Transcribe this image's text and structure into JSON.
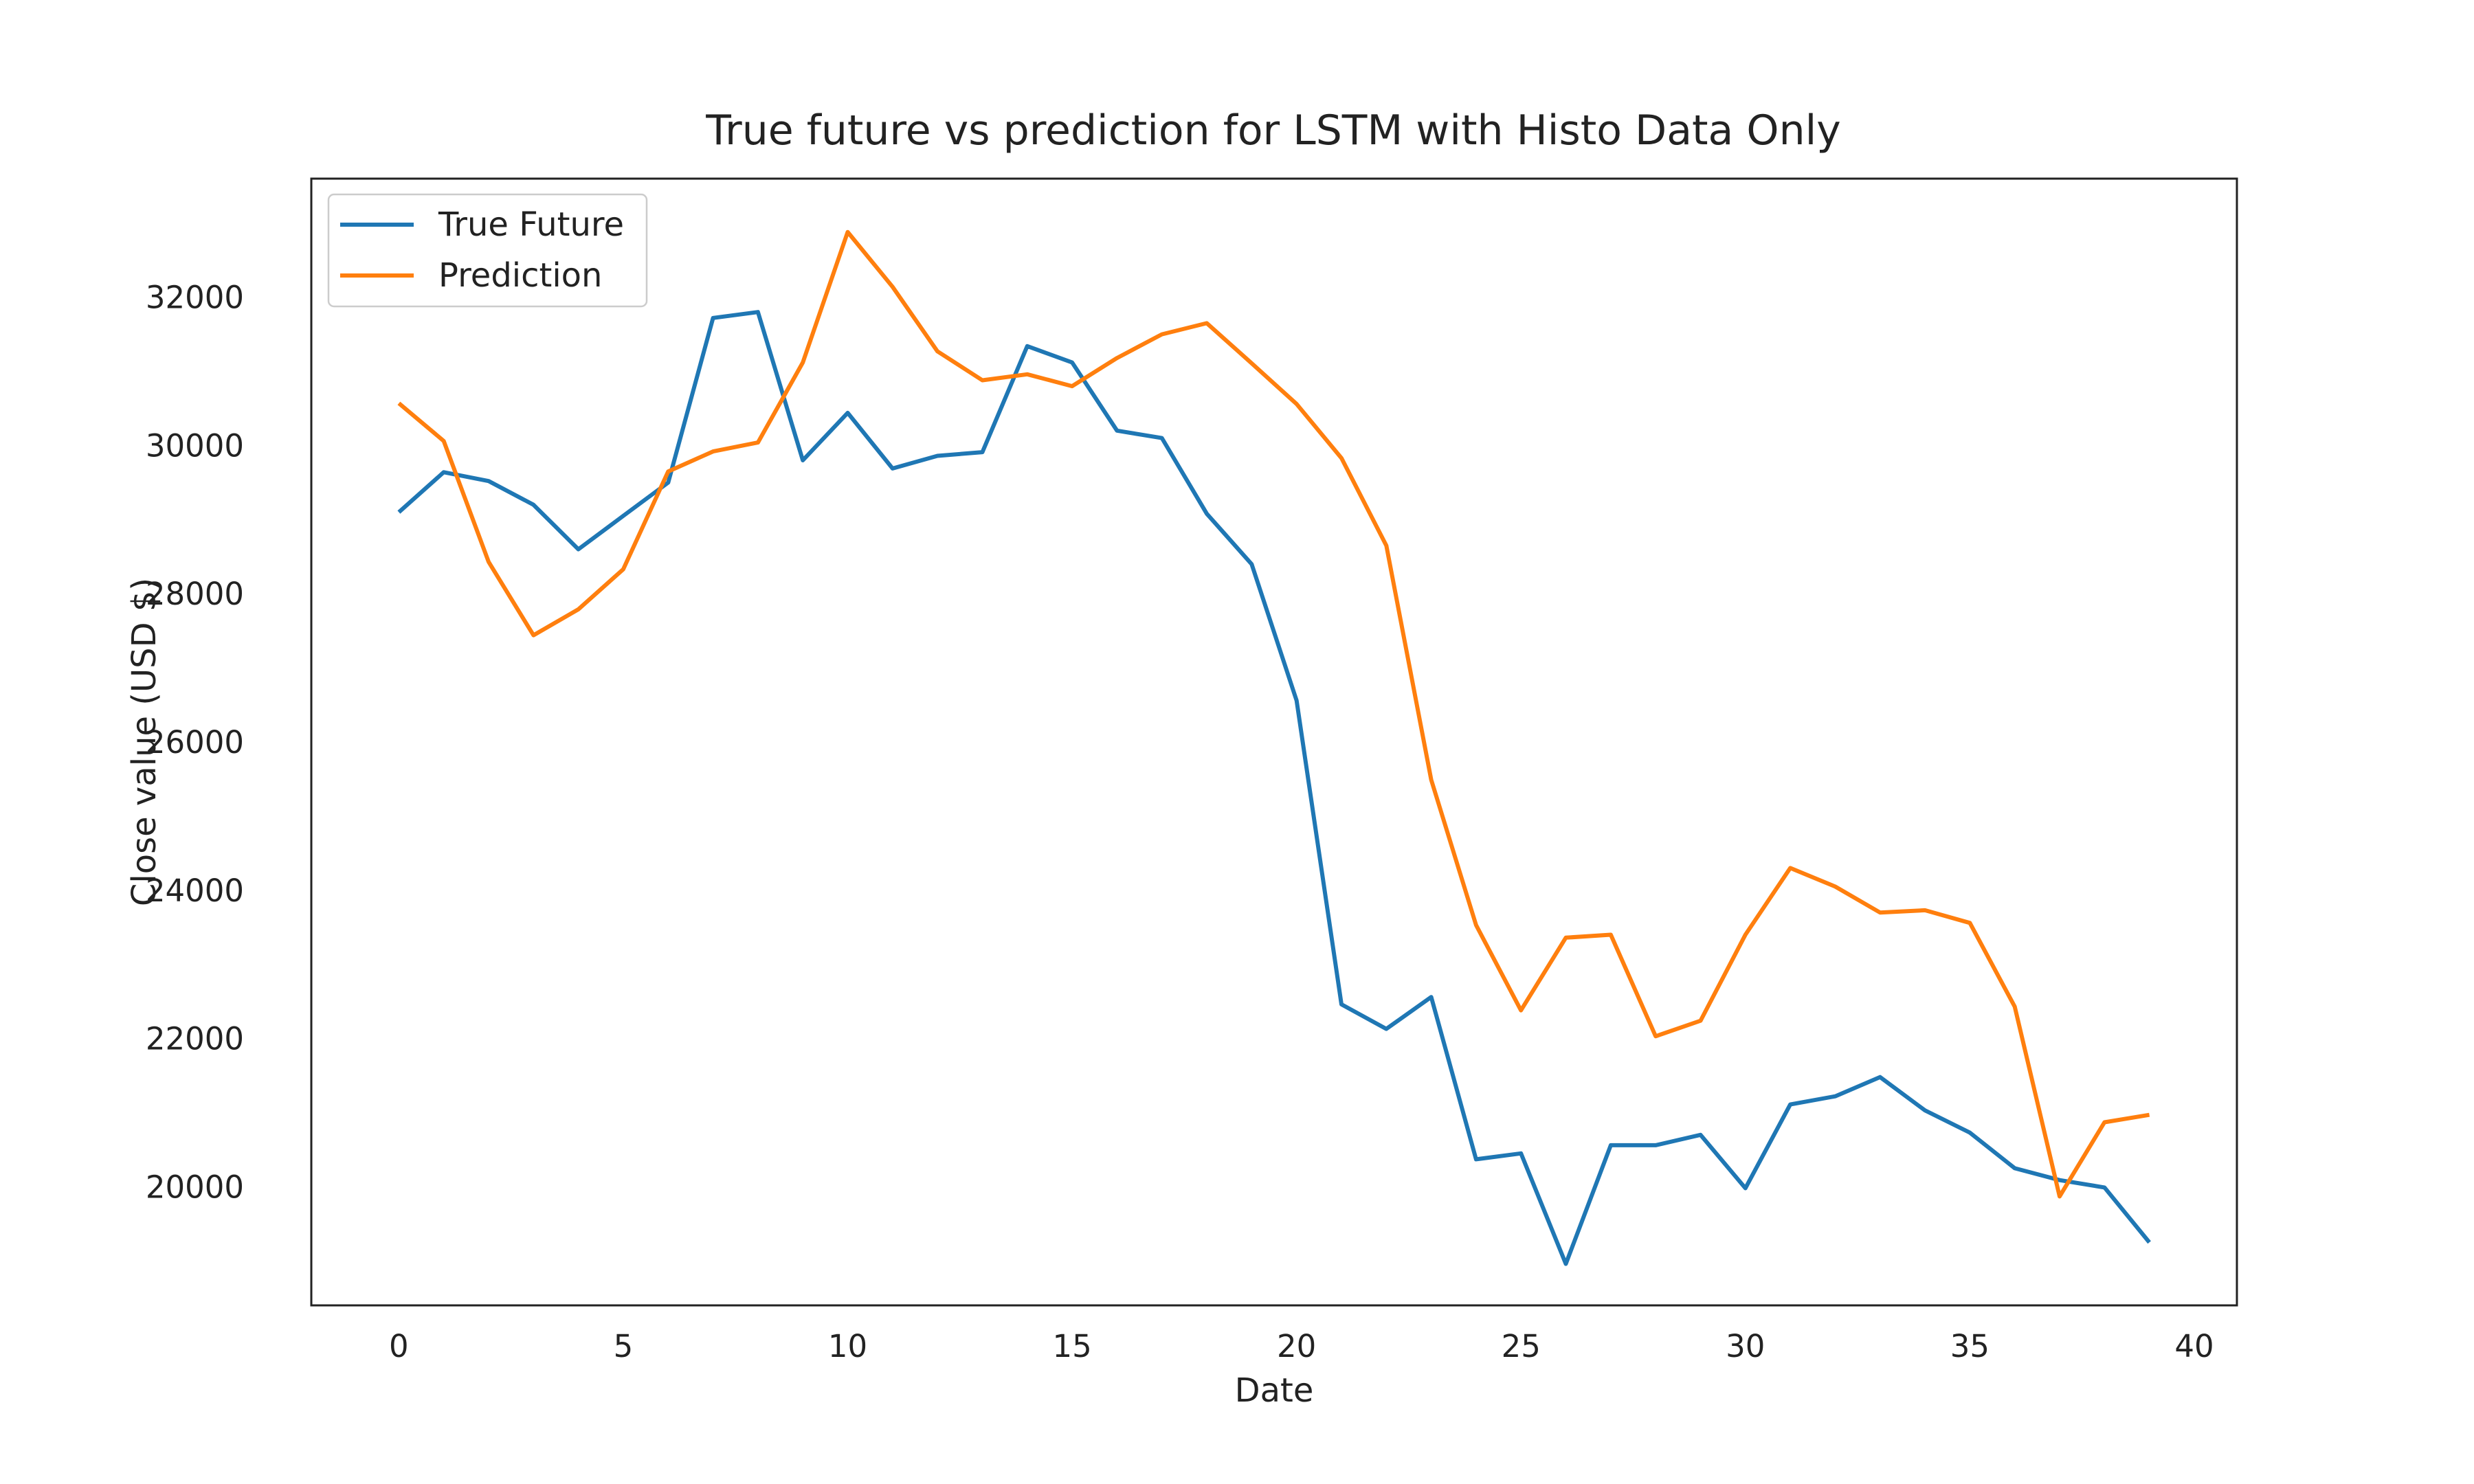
{
  "chart_data": {
    "type": "line",
    "title": "True future vs prediction for LSTM with Histo Data Only",
    "xlabel": "Date",
    "ylabel": "Close value (USD $)",
    "xlim": [
      -1.95,
      40.95
    ],
    "ylim": [
      18400,
      33600
    ],
    "xticks": [
      0,
      5,
      10,
      15,
      20,
      25,
      30,
      35,
      40
    ],
    "yticks": [
      20000,
      22000,
      24000,
      26000,
      28000,
      30000,
      32000
    ],
    "grid": false,
    "legend_position": "top-left",
    "x": [
      0,
      1,
      2,
      3,
      4,
      5,
      6,
      7,
      8,
      9,
      10,
      11,
      12,
      13,
      14,
      15,
      16,
      17,
      18,
      19,
      20,
      21,
      22,
      23,
      24,
      25,
      26,
      27,
      28,
      29,
      30,
      31,
      32,
      33,
      34,
      35,
      36,
      37,
      38,
      39
    ],
    "series": [
      {
        "name": "True Future",
        "color": "#1f77b4",
        "values": [
          29100,
          29640,
          29520,
          29200,
          28600,
          29050,
          29500,
          31720,
          31800,
          29800,
          30440,
          29690,
          29860,
          29910,
          31340,
          31120,
          30200,
          30100,
          29080,
          28400,
          26560,
          22460,
          22130,
          22560,
          20370,
          20450,
          18960,
          20560,
          20560,
          20700,
          19980,
          21110,
          21220,
          21480,
          21030,
          20730,
          20250,
          20090,
          19990,
          19250
        ]
      },
      {
        "name": "Prediction",
        "color": "#ff7f0e",
        "values": [
          30570,
          30060,
          28430,
          27440,
          27790,
          28330,
          29650,
          29920,
          30040,
          31120,
          32880,
          32140,
          31270,
          30880,
          30960,
          30800,
          31180,
          31500,
          31650,
          31110,
          30560,
          29830,
          28650,
          25490,
          23530,
          22380,
          23360,
          23400,
          22030,
          22240,
          23400,
          24300,
          24050,
          23700,
          23730,
          23560,
          22430,
          19870,
          20870,
          20970
        ]
      }
    ]
  }
}
